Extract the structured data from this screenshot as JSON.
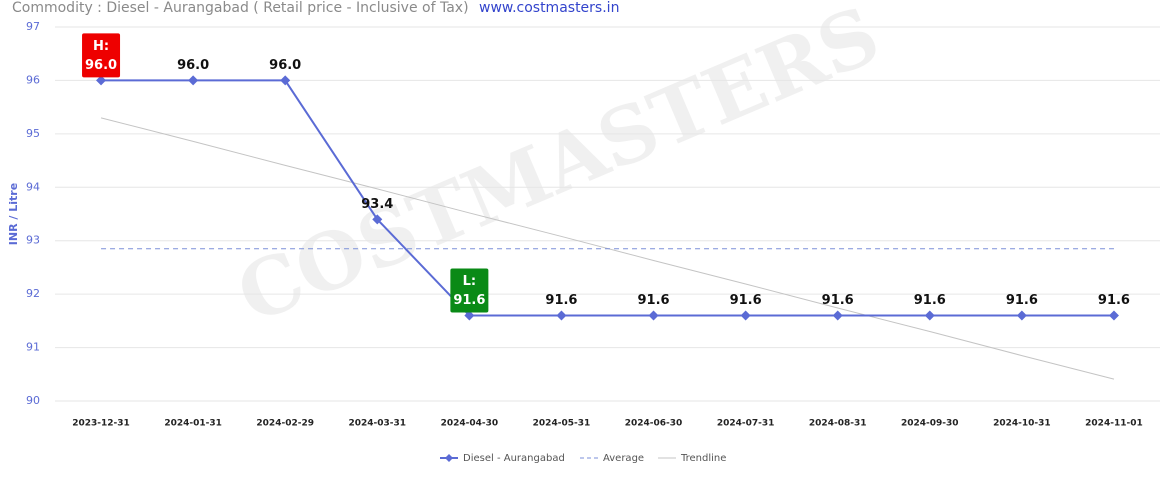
{
  "chart_data": {
    "type": "line",
    "title": "Commodity : Diesel - Aurangabad ( Retail price - Inclusive of Tax)",
    "source": "www.costmasters.in",
    "watermark": "COSTMASTERS",
    "y_label": "INR / Litre",
    "categories": [
      "2023-12-31",
      "2024-01-31",
      "2024-02-29",
      "2024-03-31",
      "2024-04-30",
      "2024-05-31",
      "2024-06-30",
      "2024-07-31",
      "2024-08-31",
      "2024-09-30",
      "2024-10-31",
      "2024-11-01"
    ],
    "series": [
      {
        "name": "Diesel - Aurangabad",
        "color": "#5b6bd5",
        "values": [
          96.0,
          96.0,
          96.0,
          93.4,
          91.6,
          91.6,
          91.6,
          91.6,
          91.6,
          91.6,
          91.6,
          91.6
        ],
        "value_labels": [
          "96.0",
          "96.0",
          "96.0",
          "93.4",
          "91.6",
          "91.6",
          "91.6",
          "91.6",
          "91.6",
          "91.6",
          "91.6",
          "91.6"
        ]
      },
      {
        "name": "Average",
        "color": "#7b8fd8",
        "dashed": true,
        "values": [
          92.85,
          92.85,
          92.85,
          92.85,
          92.85,
          92.85,
          92.85,
          92.85,
          92.85,
          92.85,
          92.85,
          92.85
        ]
      },
      {
        "name": "Trendline",
        "color": "#c4c4c4",
        "values": [
          95.3,
          94.86,
          94.41,
          93.97,
          93.52,
          93.08,
          92.63,
          92.19,
          91.74,
          91.3,
          90.85,
          90.41
        ]
      }
    ],
    "high_label": "H:",
    "low_label": "L:",
    "ylim": [
      90,
      97
    ],
    "yticks": [
      90,
      91,
      92,
      93,
      94,
      95,
      96,
      97
    ],
    "grid": true,
    "legend": "bottom"
  }
}
